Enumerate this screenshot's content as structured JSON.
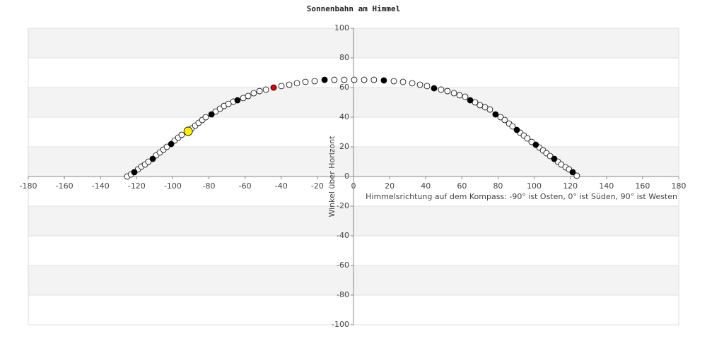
{
  "chart_data": {
    "type": "scatter",
    "title": "Sonnenbahn am Himmel",
    "x_label": "Himmelsrichtung auf dem Kompass: -90° ist Osten, 0° ist Süden, 90° ist Westen",
    "y_label": "Winkel über Horizont",
    "xlim": [
      -180,
      180
    ],
    "xticks": [
      -180,
      -160,
      -140,
      -120,
      -100,
      -80,
      -60,
      -40,
      -20,
      0,
      20,
      40,
      60,
      80,
      100,
      120,
      140,
      160,
      180
    ],
    "ylim": [
      -100,
      100
    ],
    "yticks": [
      -100,
      -80,
      -60,
      -40,
      -20,
      0,
      20,
      40,
      60,
      80,
      100
    ],
    "grid": true,
    "series": [
      {
        "color": "#ffffff",
        "marker_size": 4,
        "x": [
          -125.2,
          -123.2,
          -119.3,
          -117.4,
          -115.4,
          -113.5,
          -109.2,
          -107.2,
          -105.2,
          -103.3,
          -99.0,
          -97.0,
          -95.1,
          -89.6,
          -87.6,
          -85.7,
          -83.7,
          -81.8,
          -76.3,
          -73.9,
          -71.6,
          -69.2,
          -66.5,
          -61.0,
          -58.3,
          -55.2,
          -52.0,
          -48.5,
          -39.9,
          -35.6,
          -31.3,
          -26.6,
          -21.5,
          -10.6,
          -5.1,
          0.4,
          5.9,
          11.3,
          22.3,
          27.4,
          32.5,
          36.8,
          40.7,
          48.5,
          52.0,
          55.6,
          58.7,
          61.8,
          67.3,
          70.0,
          72.8,
          75.5,
          81.4,
          83.7,
          86.1,
          88.0,
          92.3,
          94.3,
          96.2,
          98.6,
          102.9,
          104.9,
          106.8,
          108.8,
          113.1,
          115.0,
          117.4,
          119.3,
          123.6
        ],
        "values": [
          0,
          1.4,
          4.8,
          6.7,
          8.1,
          10.0,
          14.3,
          16.2,
          18.1,
          20.0,
          24.3,
          26.2,
          28.1,
          32.4,
          34.3,
          36.2,
          38.1,
          40.0,
          43.8,
          45.7,
          47.6,
          49.0,
          50.5,
          52.9,
          54.3,
          56.2,
          57.6,
          58.6,
          61.0,
          61.9,
          62.9,
          63.8,
          64.3,
          65.2,
          65.2,
          65.2,
          65.2,
          65.2,
          64.3,
          63.8,
          62.9,
          61.9,
          61.0,
          58.6,
          57.6,
          56.2,
          54.8,
          53.8,
          50.0,
          48.1,
          46.7,
          45.2,
          40.0,
          38.1,
          35.7,
          33.8,
          29.5,
          27.6,
          25.7,
          23.3,
          19.5,
          17.6,
          15.7,
          13.8,
          10.0,
          8.1,
          6.2,
          4.8,
          0.5
        ]
      },
      {
        "color": "#000000",
        "marker_size": 4,
        "x": [
          -121.3,
          -111.1,
          -100.9,
          -78.6,
          -64.2,
          -16.0,
          16.8,
          44.6,
          64.6,
          78.6,
          90.4,
          100.9,
          111.1,
          121.3
        ],
        "values": [
          2.9,
          11.9,
          21.9,
          41.9,
          51.4,
          65.2,
          64.8,
          59.5,
          51.4,
          41.9,
          31.4,
          21.4,
          11.9,
          2.9
        ]
      },
      {
        "color": "#e00000",
        "marker_size": 4,
        "x": [
          -44.2
        ],
        "values": [
          60.0
        ]
      },
      {
        "color": "#ffee00",
        "marker_size": 6,
        "x": [
          -91.5
        ],
        "values": [
          30.5
        ]
      }
    ]
  }
}
